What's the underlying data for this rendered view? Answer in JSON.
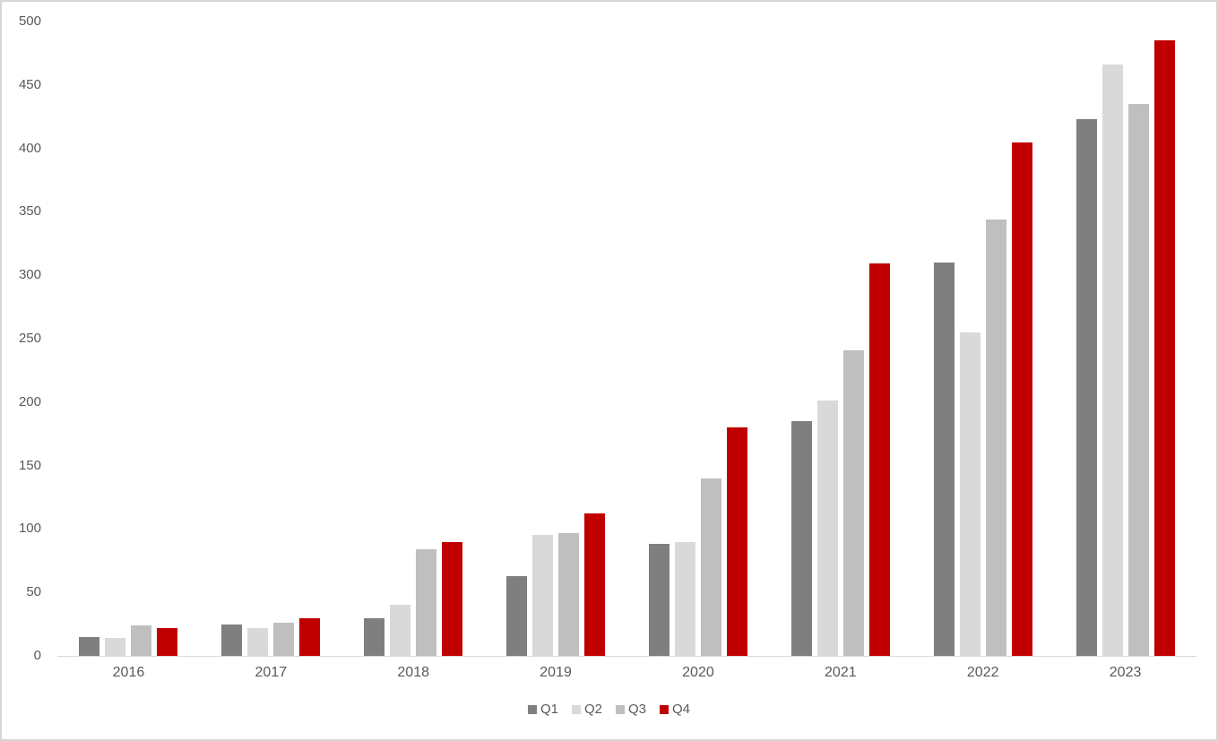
{
  "chart_data": {
    "type": "bar",
    "title": "",
    "xlabel": "",
    "ylabel": "",
    "categories": [
      "2016",
      "2017",
      "2018",
      "2019",
      "2020",
      "2021",
      "2022",
      "2023"
    ],
    "series": [
      {
        "name": "Q1",
        "color": "#7f7f7f",
        "values": [
          15,
          25,
          30,
          63,
          88,
          185,
          310,
          423
        ]
      },
      {
        "name": "Q2",
        "color": "#d9d9d9",
        "values": [
          14,
          22,
          40,
          95,
          90,
          201,
          255,
          466
        ]
      },
      {
        "name": "Q3",
        "color": "#bfbfbf",
        "values": [
          24,
          26,
          84,
          97,
          140,
          241,
          344,
          435
        ]
      },
      {
        "name": "Q4",
        "color": "#c00000",
        "values": [
          22,
          30,
          90,
          112,
          180,
          309,
          405,
          485
        ]
      }
    ],
    "ylim": [
      0,
      500
    ],
    "y_ticks": [
      0,
      50,
      100,
      150,
      200,
      250,
      300,
      350,
      400,
      450,
      500
    ],
    "grid": false,
    "legend_position": "bottom",
    "axis_text_color": "#595959",
    "axis_line_color": "#d9d9d9",
    "frame_border_color": "#d6d6d6",
    "background_color": "#ffffff"
  }
}
